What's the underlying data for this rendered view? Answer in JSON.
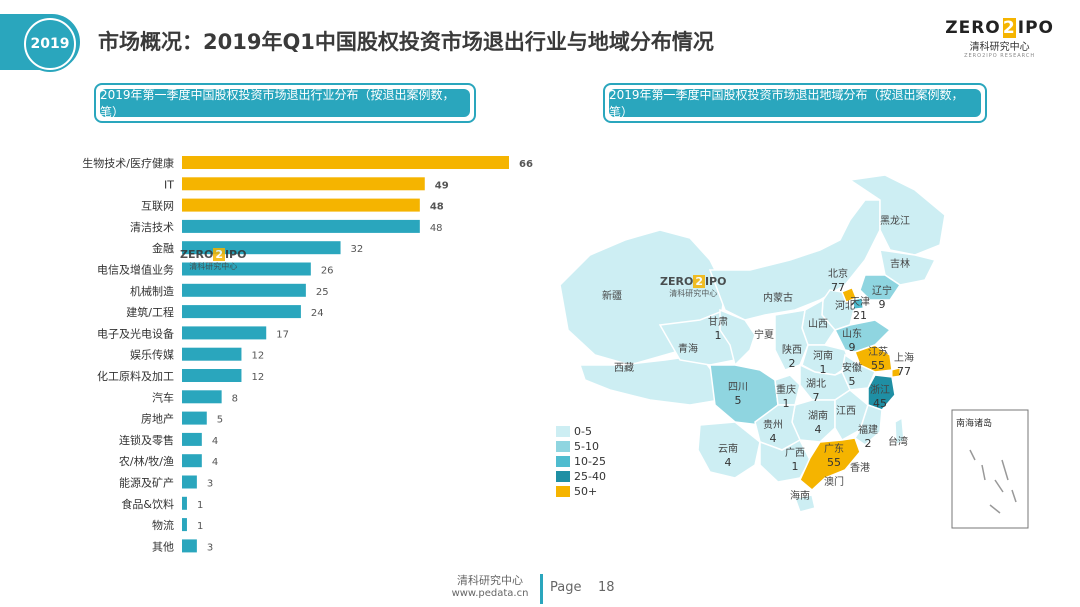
{
  "header": {
    "year": "2019",
    "title": "市场概况：2019年Q1中国股权投资市场退出行业与地域分布情况",
    "logo_main_1": "ZERO",
    "logo_main_z": "2",
    "logo_main_2": "IPO",
    "logo_sub": "清科研究中心",
    "logo_tiny": "ZERO2IPO RESEARCH"
  },
  "left_panel_title": "2019年第一季度中国股权投资市场退出行业分布（按退出案例数，笔）",
  "right_panel_title": "2019年第一季度中国股权投资市场退出地域分布（按退出案例数，笔）",
  "watermark": {
    "main_1": "ZERO",
    "main_z": "2",
    "main_2": "IPO",
    "sub": "清科研究中心"
  },
  "chart_data": [
    {
      "type": "bar",
      "orientation": "horizontal",
      "title": "2019年第一季度中国股权投资市场退出行业分布（按退出案例数，笔）",
      "categories": [
        "生物技术/医疗健康",
        "IT",
        "互联网",
        "清洁技术",
        "金融",
        "电信及增值业务",
        "机械制造",
        "建筑/工程",
        "电子及光电设备",
        "娱乐传媒",
        "化工原料及加工",
        "汽车",
        "房地产",
        "连锁及零售",
        "农/林/牧/渔",
        "能源及矿产",
        "食品&饮料",
        "物流",
        "其他"
      ],
      "values": [
        66,
        49,
        48,
        48,
        32,
        26,
        25,
        24,
        17,
        12,
        12,
        8,
        5,
        4,
        4,
        3,
        1,
        1,
        3
      ],
      "highlight": [
        true,
        true,
        true,
        false,
        false,
        false,
        false,
        false,
        false,
        false,
        false,
        false,
        false,
        false,
        false,
        false,
        false,
        false,
        false
      ],
      "colors": {
        "highlight": "#f5b400",
        "normal": "#2aa6bd"
      }
    },
    {
      "type": "map",
      "title": "2019年第一季度中国股权投资市场退出地域分布（按退出案例数，笔）",
      "regions": [
        {
          "name": "黑龙江",
          "value": null
        },
        {
          "name": "吉林",
          "value": null
        },
        {
          "name": "辽宁",
          "value": 9
        },
        {
          "name": "北京",
          "value": 77
        },
        {
          "name": "天津",
          "value": 21
        },
        {
          "name": "河北",
          "value": null
        },
        {
          "name": "内蒙古",
          "value": null
        },
        {
          "name": "新疆",
          "value": null
        },
        {
          "name": "西藏",
          "value": null
        },
        {
          "name": "青海",
          "value": null
        },
        {
          "name": "甘肃",
          "value": 1
        },
        {
          "name": "宁夏",
          "value": null
        },
        {
          "name": "陕西",
          "value": 2
        },
        {
          "name": "山西",
          "value": null
        },
        {
          "name": "山东",
          "value": 9
        },
        {
          "name": "河南",
          "value": 1
        },
        {
          "name": "江苏",
          "value": 55
        },
        {
          "name": "安徽",
          "value": 5
        },
        {
          "name": "上海",
          "value": 77
        },
        {
          "name": "浙江",
          "value": 45
        },
        {
          "name": "湖北",
          "value": 7
        },
        {
          "name": "四川",
          "value": 5
        },
        {
          "name": "重庆",
          "value": 1
        },
        {
          "name": "湖南",
          "value": 4
        },
        {
          "name": "江西",
          "value": null
        },
        {
          "name": "福建",
          "value": 2
        },
        {
          "name": "贵州",
          "value": 4
        },
        {
          "name": "云南",
          "value": 4
        },
        {
          "name": "广西",
          "value": 1
        },
        {
          "name": "广东",
          "value": 55
        },
        {
          "name": "香港",
          "value": null
        },
        {
          "name": "澳门",
          "value": null
        },
        {
          "name": "台湾",
          "value": null
        },
        {
          "name": "海南",
          "value": null
        },
        {
          "name": "南海诸岛",
          "value": null
        }
      ],
      "legend": [
        {
          "label": "0-5",
          "color": "#cdeef3"
        },
        {
          "label": "5-10",
          "color": "#8fd5e0"
        },
        {
          "label": "10-25",
          "color": "#4fbccf"
        },
        {
          "label": "25-40",
          "color": "#1f8fa4"
        },
        {
          "label": "50+",
          "color": "#f5b400"
        }
      ]
    }
  ],
  "footer": {
    "name": "清科研究中心",
    "url": "www.pedata.cn",
    "page_label": "Page",
    "page_number": "18"
  }
}
